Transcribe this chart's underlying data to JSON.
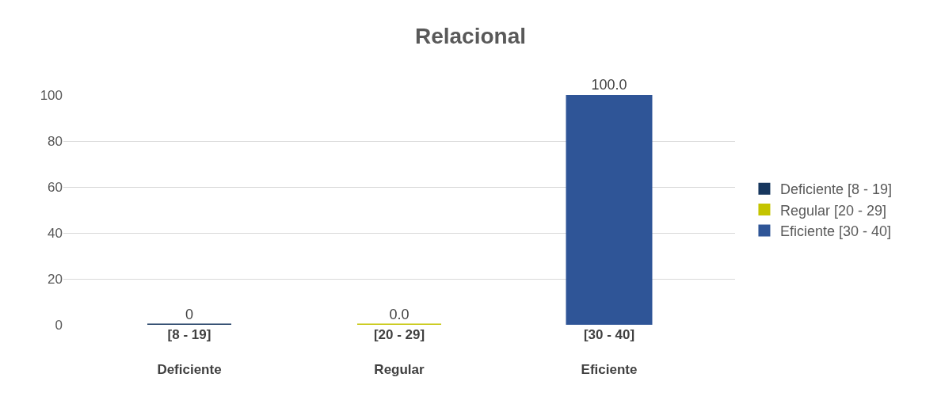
{
  "chart_data": {
    "type": "bar",
    "title": "Relacional",
    "categories": [
      "[8 - 19]\nDeficiente",
      "[20 - 29]\nRegular",
      "[30 - 40]\nEficiente"
    ],
    "series": [
      {
        "name": "Deficiente [8 - 19]",
        "color": "#17375e",
        "values": [
          0,
          null,
          null
        ],
        "value_labels": [
          "0",
          null,
          null
        ]
      },
      {
        "name": "Regular [20 - 29]",
        "color": "#c4c400",
        "values": [
          null,
          0,
          null
        ],
        "value_labels": [
          null,
          "0.0",
          null
        ]
      },
      {
        "name": "Eficiente [30 - 40]",
        "color": "#2f5597",
        "values": [
          null,
          null,
          100
        ],
        "value_labels": [
          null,
          null,
          "100.0"
        ]
      }
    ],
    "ylim": [
      0,
      100
    ],
    "yticks": [
      0,
      20,
      40,
      60,
      80,
      100
    ],
    "grid": "y",
    "legend": "right"
  }
}
